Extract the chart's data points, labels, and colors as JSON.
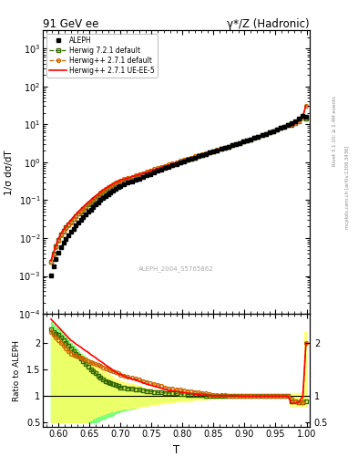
{
  "title_left": "91 GeV ee",
  "title_right": "γ*/Z (Hadronic)",
  "xlabel": "T",
  "ylabel_main": "1/σ dσ/dT",
  "ylabel_ratio": "Ratio to ALEPH",
  "right_label_top": "Rivet 3.1.10; ≥ 2.4M events",
  "right_label_bottom": "mcplots.cern.ch [arXiv:1306.3436]",
  "watermark": "ALEPH_2004_S5765862",
  "xlim": [
    0.575,
    1.005
  ],
  "ylim_main": [
    0.0001,
    3000.0
  ],
  "ylim_ratio": [
    0.4,
    2.55
  ],
  "legend_entries": [
    "ALEPH",
    "Herwig++ 2.7.1 default",
    "Herwig++ 2.7.1 UE-EE-5",
    "Herwig 7.2.1 default"
  ],
  "aleph_color": "#000000",
  "hw271_default_color": "#cc6600",
  "hw271_ueee5_color": "#ff0000",
  "hw721_default_color": "#336600",
  "band_yellow_color": "#ffff66",
  "band_green_color": "#66ff66",
  "T_centers": [
    0.588,
    0.592,
    0.596,
    0.6,
    0.604,
    0.608,
    0.612,
    0.616,
    0.62,
    0.624,
    0.628,
    0.632,
    0.636,
    0.64,
    0.644,
    0.648,
    0.652,
    0.656,
    0.66,
    0.664,
    0.668,
    0.672,
    0.676,
    0.68,
    0.684,
    0.688,
    0.692,
    0.696,
    0.7,
    0.706,
    0.712,
    0.718,
    0.724,
    0.73,
    0.736,
    0.742,
    0.748,
    0.754,
    0.76,
    0.766,
    0.772,
    0.778,
    0.784,
    0.79,
    0.796,
    0.802,
    0.808,
    0.814,
    0.82,
    0.826,
    0.832,
    0.838,
    0.844,
    0.85,
    0.856,
    0.862,
    0.868,
    0.874,
    0.88,
    0.886,
    0.892,
    0.898,
    0.904,
    0.91,
    0.916,
    0.922,
    0.928,
    0.934,
    0.94,
    0.946,
    0.952,
    0.958,
    0.964,
    0.97,
    0.976,
    0.982,
    0.988,
    0.994,
    0.999
  ],
  "aleph_vals": [
    0.00105,
    0.00175,
    0.0028,
    0.0042,
    0.0058,
    0.0076,
    0.0095,
    0.0118,
    0.0145,
    0.0176,
    0.0212,
    0.0254,
    0.0301,
    0.0355,
    0.0417,
    0.0487,
    0.0566,
    0.0655,
    0.0756,
    0.087,
    0.0999,
    0.114,
    0.129,
    0.145,
    0.162,
    0.18,
    0.199,
    0.219,
    0.24,
    0.262,
    0.286,
    0.312,
    0.34,
    0.372,
    0.408,
    0.447,
    0.49,
    0.537,
    0.587,
    0.641,
    0.7,
    0.762,
    0.828,
    0.898,
    0.972,
    1.05,
    1.14,
    1.23,
    1.33,
    1.43,
    1.55,
    1.67,
    1.8,
    1.94,
    2.09,
    2.25,
    2.42,
    2.61,
    2.8,
    3.01,
    3.24,
    3.49,
    3.75,
    4.04,
    4.36,
    4.71,
    5.1,
    5.54,
    6.04,
    6.6,
    7.23,
    7.94,
    8.75,
    9.68,
    10.8,
    12.1,
    13.8,
    17.0,
    15.5
  ],
  "ratio_hw271_default": [
    2.2,
    2.15,
    2.1,
    2.05,
    2.0,
    1.95,
    1.9,
    1.85,
    1.8,
    1.78,
    1.76,
    1.74,
    1.72,
    1.7,
    1.68,
    1.66,
    1.64,
    1.62,
    1.6,
    1.58,
    1.56,
    1.54,
    1.52,
    1.5,
    1.48,
    1.46,
    1.44,
    1.42,
    1.4,
    1.38,
    1.36,
    1.34,
    1.32,
    1.3,
    1.28,
    1.26,
    1.24,
    1.22,
    1.2,
    1.18,
    1.16,
    1.14,
    1.13,
    1.12,
    1.11,
    1.1,
    1.09,
    1.08,
    1.07,
    1.06,
    1.05,
    1.04,
    1.03,
    1.02,
    1.02,
    1.01,
    1.01,
    1.0,
    1.0,
    1.0,
    1.0,
    1.0,
    1.0,
    1.0,
    1.0,
    1.0,
    1.0,
    1.0,
    1.0,
    1.0,
    1.0,
    1.0,
    1.0,
    1.0,
    0.95,
    0.9,
    0.88,
    0.87,
    2.0
  ],
  "ratio_hw271_ueee5": [
    2.45,
    2.4,
    2.35,
    2.3,
    2.25,
    2.2,
    2.15,
    2.1,
    2.05,
    2.02,
    1.98,
    1.95,
    1.92,
    1.88,
    1.85,
    1.82,
    1.78,
    1.75,
    1.72,
    1.68,
    1.65,
    1.62,
    1.58,
    1.55,
    1.52,
    1.48,
    1.45,
    1.42,
    1.4,
    1.37,
    1.34,
    1.32,
    1.3,
    1.27,
    1.25,
    1.22,
    1.2,
    1.18,
    1.16,
    1.14,
    1.12,
    1.1,
    1.09,
    1.08,
    1.07,
    1.06,
    1.05,
    1.04,
    1.03,
    1.02,
    1.01,
    1.01,
    1.0,
    1.0,
    1.0,
    1.0,
    1.0,
    1.0,
    1.0,
    1.0,
    0.99,
    0.99,
    0.99,
    0.99,
    0.99,
    0.99,
    0.99,
    0.99,
    0.99,
    0.99,
    0.99,
    0.99,
    0.99,
    0.99,
    0.85,
    0.86,
    0.88,
    1.0,
    2.0
  ],
  "ratio_hw721_default": [
    2.25,
    2.2,
    2.18,
    2.15,
    2.1,
    2.05,
    2.0,
    1.95,
    1.9,
    1.85,
    1.8,
    1.75,
    1.7,
    1.65,
    1.6,
    1.55,
    1.5,
    1.46,
    1.42,
    1.38,
    1.34,
    1.3,
    1.28,
    1.26,
    1.24,
    1.22,
    1.2,
    1.18,
    1.16,
    1.15,
    1.14,
    1.13,
    1.12,
    1.11,
    1.1,
    1.09,
    1.08,
    1.07,
    1.06,
    1.06,
    1.05,
    1.05,
    1.04,
    1.04,
    1.03,
    1.03,
    1.02,
    1.02,
    1.01,
    1.01,
    1.01,
    1.0,
    1.0,
    1.0,
    1.0,
    1.0,
    1.0,
    1.0,
    1.0,
    1.0,
    1.0,
    1.0,
    1.0,
    1.0,
    1.0,
    1.0,
    1.0,
    1.0,
    1.0,
    1.0,
    1.0,
    1.0,
    1.0,
    1.0,
    0.9,
    0.9,
    0.88,
    0.88,
    0.9
  ],
  "band_yellow_lo": [
    0.5,
    0.5,
    0.5,
    0.5,
    0.5,
    0.5,
    0.5,
    0.5,
    0.5,
    0.5,
    0.5,
    0.5,
    0.5,
    0.5,
    0.5,
    0.52,
    0.55,
    0.58,
    0.6,
    0.62,
    0.64,
    0.65,
    0.67,
    0.68,
    0.7,
    0.71,
    0.72,
    0.73,
    0.74,
    0.75,
    0.76,
    0.77,
    0.78,
    0.79,
    0.8,
    0.81,
    0.82,
    0.83,
    0.84,
    0.85,
    0.86,
    0.87,
    0.88,
    0.89,
    0.89,
    0.9,
    0.9,
    0.91,
    0.92,
    0.92,
    0.93,
    0.93,
    0.94,
    0.94,
    0.95,
    0.95,
    0.96,
    0.96,
    0.97,
    0.97,
    0.97,
    0.98,
    0.98,
    0.98,
    0.98,
    0.99,
    0.99,
    0.99,
    0.99,
    0.99,
    0.99,
    0.99,
    0.99,
    0.99,
    0.8,
    0.8,
    0.8,
    0.8,
    0.8
  ],
  "band_yellow_hi": [
    2.3,
    2.25,
    2.2,
    2.15,
    2.1,
    2.05,
    2.0,
    1.95,
    1.9,
    1.87,
    1.84,
    1.8,
    1.77,
    1.74,
    1.7,
    1.67,
    1.64,
    1.6,
    1.57,
    1.54,
    1.5,
    1.47,
    1.44,
    1.41,
    1.38,
    1.35,
    1.32,
    1.3,
    1.28,
    1.26,
    1.24,
    1.22,
    1.2,
    1.18,
    1.16,
    1.14,
    1.12,
    1.11,
    1.1,
    1.09,
    1.08,
    1.07,
    1.06,
    1.05,
    1.04,
    1.03,
    1.02,
    1.01,
    1.01,
    1.01,
    1.01,
    1.01,
    1.01,
    1.01,
    1.01,
    1.01,
    1.01,
    1.01,
    1.01,
    1.01,
    1.01,
    1.01,
    1.01,
    1.01,
    1.01,
    1.01,
    1.01,
    1.01,
    1.01,
    1.01,
    1.01,
    1.01,
    1.01,
    1.01,
    1.05,
    1.05,
    1.05,
    1.05,
    2.2
  ],
  "band_green_lo": [
    0.5,
    0.5,
    0.5,
    0.5,
    0.5,
    0.5,
    0.5,
    0.5,
    0.5,
    0.5,
    0.5,
    0.5,
    0.5,
    0.5,
    0.5,
    0.5,
    0.5,
    0.5,
    0.5,
    0.52,
    0.54,
    0.56,
    0.58,
    0.6,
    0.62,
    0.64,
    0.66,
    0.68,
    0.7,
    0.72,
    0.74,
    0.76,
    0.78,
    0.8,
    0.82,
    0.84,
    0.85,
    0.86,
    0.87,
    0.88,
    0.89,
    0.9,
    0.91,
    0.91,
    0.92,
    0.92,
    0.93,
    0.93,
    0.94,
    0.94,
    0.95,
    0.95,
    0.96,
    0.96,
    0.97,
    0.97,
    0.97,
    0.98,
    0.98,
    0.98,
    0.98,
    0.99,
    0.99,
    0.99,
    0.99,
    0.99,
    0.99,
    0.99,
    0.99,
    0.99,
    0.99,
    0.99,
    0.99,
    0.99,
    0.85,
    0.85,
    0.84,
    0.83,
    0.85
  ],
  "band_green_hi": [
    2.4,
    2.35,
    2.3,
    2.25,
    2.2,
    2.15,
    2.1,
    2.05,
    2.0,
    1.95,
    1.9,
    1.85,
    1.8,
    1.75,
    1.7,
    1.65,
    1.6,
    1.55,
    1.5,
    1.45,
    1.42,
    1.39,
    1.36,
    1.33,
    1.3,
    1.27,
    1.24,
    1.21,
    1.18,
    1.17,
    1.16,
    1.15,
    1.14,
    1.13,
    1.12,
    1.11,
    1.1,
    1.09,
    1.08,
    1.08,
    1.07,
    1.07,
    1.06,
    1.06,
    1.05,
    1.05,
    1.04,
    1.03,
    1.02,
    1.02,
    1.01,
    1.01,
    1.01,
    1.01,
    1.01,
    1.01,
    1.01,
    1.01,
    1.01,
    1.01,
    1.01,
    1.01,
    1.01,
    1.01,
    1.01,
    1.01,
    1.01,
    1.01,
    1.01,
    1.01,
    1.01,
    1.01,
    1.01,
    1.01,
    0.96,
    0.95,
    0.94,
    0.94,
    1.0
  ]
}
